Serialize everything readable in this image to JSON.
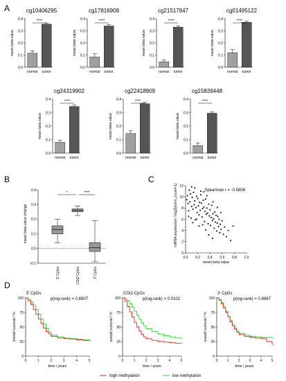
{
  "panels": {
    "A": "A",
    "B": "B",
    "C": "C",
    "D": "D"
  },
  "colors": {
    "normal_bar": "#a0a0a0",
    "tumor_bar": "#555555",
    "box_fill": "#999999",
    "scatter": "#222222",
    "high": "#e8232b",
    "low": "#22dd22"
  },
  "chart_data": [
    {
      "type": "bar",
      "title": "cg10406295",
      "categories": [
        "normal",
        "tumor"
      ],
      "values": [
        0.115,
        0.355
      ],
      "errors": [
        0.02,
        0.01
      ],
      "ylabel": "mean beta value",
      "yticks": [
        "0.0",
        "0.1",
        "0.2",
        "0.3",
        "0.4"
      ],
      "ylim": [
        0,
        0.4
      ],
      "significance": "****"
    },
    {
      "type": "bar",
      "title": "cg17816908",
      "categories": [
        "normal",
        "tumor"
      ],
      "values": [
        0.085,
        0.34
      ],
      "errors": [
        0.025,
        0.01
      ],
      "ylabel": "mean beta value",
      "yticks": [
        "0.0",
        "0.1",
        "0.2",
        "0.3",
        "0.4"
      ],
      "ylim": [
        0,
        0.4
      ],
      "significance": "****"
    },
    {
      "type": "bar",
      "title": "cg21517947",
      "categories": [
        "normal",
        "tumor"
      ],
      "values": [
        0.045,
        0.33
      ],
      "errors": [
        0.015,
        0.01
      ],
      "ylabel": "mean beta value",
      "yticks": [
        "0.0",
        "0.1",
        "0.2",
        "0.3",
        "0.4"
      ],
      "ylim": [
        0,
        0.4
      ],
      "significance": "****"
    },
    {
      "type": "bar",
      "title": "cg01495122",
      "categories": [
        "normal",
        "tumor"
      ],
      "values": [
        0.12,
        0.37
      ],
      "errors": [
        0.025,
        0.01
      ],
      "ylabel": "mean beta value",
      "yticks": [
        "0.0",
        "0.1",
        "0.2",
        "0.3",
        "0.4"
      ],
      "ylim": [
        0,
        0.4
      ],
      "significance": "****"
    },
    {
      "type": "bar",
      "title": "cg24319902",
      "categories": [
        "normal",
        "tumor"
      ],
      "values": [
        0.08,
        0.345
      ],
      "errors": [
        0.015,
        0.01
      ],
      "ylabel": "mean beta value",
      "yticks": [
        "0.0",
        "0.1",
        "0.2",
        "0.3",
        "0.4"
      ],
      "ylim": [
        0,
        0.4
      ],
      "significance": "****"
    },
    {
      "type": "bar",
      "title": "cg22418909",
      "categories": [
        "normal",
        "tumor"
      ],
      "values": [
        0.145,
        0.365
      ],
      "errors": [
        0.02,
        0.01
      ],
      "ylabel": "mean beta value",
      "yticks": [
        "0.0",
        "0.1",
        "0.2",
        "0.3",
        "0.4"
      ],
      "ylim": [
        0,
        0.4
      ],
      "significance": "****"
    },
    {
      "type": "bar",
      "title": "cg15839448",
      "categories": [
        "normal",
        "tumor"
      ],
      "values": [
        0.055,
        0.295
      ],
      "errors": [
        0.02,
        0.01
      ],
      "ylabel": "mean beta value",
      "yticks": [
        "0.0",
        "0.1",
        "0.2",
        "0.3",
        "0.4"
      ],
      "ylim": [
        0,
        0.4
      ],
      "significance": "****"
    },
    {
      "type": "box",
      "categories": [
        "5' CpGs",
        "CGI2 CpGs",
        "3' CpGs"
      ],
      "boxes": [
        {
          "min": 0.04,
          "q1": 0.1,
          "median": 0.13,
          "q3": 0.155,
          "max": 0.2
        },
        {
          "min": 0.225,
          "q1": 0.25,
          "median": 0.26,
          "q3": 0.27,
          "max": 0.29
        },
        {
          "min": -0.09,
          "q1": -0.02,
          "median": 0.005,
          "q3": 0.04,
          "max": 0.19
        }
      ],
      "ylabel": "mean beta value change",
      "yticks": [
        "-0.1",
        "0.0",
        "0.1",
        "0.2",
        "0.3",
        "0.4"
      ],
      "ylim": [
        -0.1,
        0.4
      ],
      "significance": [
        {
          "from": 0,
          "to": 1,
          "label": "*"
        },
        {
          "from": 1,
          "to": 2,
          "label": "****"
        }
      ]
    },
    {
      "type": "scatter",
      "xlabel": "mean beta value",
      "ylabel": "mRNA expression / log2(norm_count+1)",
      "annotation": "Spearman r = -0.5808",
      "xticks": [
        "0.0",
        "0.2",
        "0.4",
        "0.6",
        "0.8",
        "1.0"
      ],
      "yticks": [
        "0",
        "2",
        "4",
        "6",
        "8",
        "10",
        "12"
      ],
      "xlim": [
        0,
        1
      ],
      "ylim": [
        0,
        12
      ],
      "points": [
        [
          0.02,
          9.5
        ],
        [
          0.03,
          10.2
        ],
        [
          0.04,
          8.8
        ],
        [
          0.05,
          7.5
        ],
        [
          0.06,
          11.2
        ],
        [
          0.07,
          9.1
        ],
        [
          0.08,
          10.5
        ],
        [
          0.09,
          6.2
        ],
        [
          0.1,
          8.3
        ],
        [
          0.11,
          9.9
        ],
        [
          0.12,
          7.8
        ],
        [
          0.13,
          10.8
        ],
        [
          0.14,
          8.6
        ],
        [
          0.15,
          9.3
        ],
        [
          0.16,
          5.9
        ],
        [
          0.17,
          8.1
        ],
        [
          0.18,
          10.1
        ],
        [
          0.19,
          7.2
        ],
        [
          0.2,
          9.7
        ],
        [
          0.21,
          8.4
        ],
        [
          0.22,
          6.8
        ],
        [
          0.23,
          9.0
        ],
        [
          0.24,
          7.6
        ],
        [
          0.25,
          10.4
        ],
        [
          0.26,
          8.9
        ],
        [
          0.27,
          6.4
        ],
        [
          0.28,
          7.9
        ],
        [
          0.29,
          9.4
        ],
        [
          0.3,
          8.2
        ],
        [
          0.31,
          5.6
        ],
        [
          0.32,
          7.4
        ],
        [
          0.33,
          9.6
        ],
        [
          0.34,
          6.9
        ],
        [
          0.35,
          8.0
        ],
        [
          0.36,
          7.1
        ],
        [
          0.37,
          5.2
        ],
        [
          0.38,
          8.7
        ],
        [
          0.39,
          6.6
        ],
        [
          0.4,
          7.7
        ],
        [
          0.41,
          4.9
        ],
        [
          0.42,
          6.3
        ],
        [
          0.43,
          8.5
        ],
        [
          0.44,
          5.8
        ],
        [
          0.45,
          7.0
        ],
        [
          0.46,
          6.1
        ],
        [
          0.47,
          4.4
        ],
        [
          0.48,
          7.3
        ],
        [
          0.49,
          5.5
        ],
        [
          0.5,
          6.7
        ],
        [
          0.51,
          3.9
        ],
        [
          0.52,
          5.3
        ],
        [
          0.53,
          6.5
        ],
        [
          0.54,
          4.7
        ],
        [
          0.55,
          6.0
        ],
        [
          0.56,
          3.6
        ],
        [
          0.57,
          5.1
        ],
        [
          0.58,
          4.2
        ],
        [
          0.6,
          5.7
        ],
        [
          0.62,
          3.3
        ],
        [
          0.64,
          4.6
        ],
        [
          0.67,
          2.9
        ],
        [
          0.7,
          4.0
        ],
        [
          0.74,
          2.2
        ],
        [
          0.78,
          4.8
        ],
        [
          0.15,
          11.6
        ],
        [
          0.25,
          11.0
        ],
        [
          0.35,
          10.2
        ],
        [
          0.45,
          9.1
        ],
        [
          0.05,
          6.5
        ],
        [
          0.12,
          5.4
        ],
        [
          0.22,
          4.8
        ],
        [
          0.33,
          4.1
        ],
        [
          0.38,
          3.2
        ],
        [
          0.44,
          2.6
        ],
        [
          0.52,
          8.1
        ],
        [
          0.58,
          7.2
        ],
        [
          0.18,
          6.0
        ],
        [
          0.28,
          5.0
        ],
        [
          0.1,
          11.8
        ],
        [
          0.3,
          10.9
        ]
      ]
    },
    {
      "type": "line",
      "title": "5' CpGs",
      "annotation": "p(log-rank) = 0.6907",
      "xlabel": "time / years",
      "ylabel": "overall survival / %",
      "xticks": [
        "0",
        "1",
        "2",
        "3",
        "4",
        "5"
      ],
      "yticks": [
        "0",
        "25",
        "50",
        "75",
        "100"
      ],
      "xlim": [
        0,
        5
      ],
      "ylim": [
        0,
        100
      ],
      "series": [
        {
          "name": "high methylation",
          "x": [
            0,
            0.2,
            0.4,
            0.6,
            0.8,
            1.0,
            1.2,
            1.4,
            1.6,
            1.8,
            2.0,
            2.5,
            3.0,
            3.5,
            4.0,
            4.5,
            5.0
          ],
          "y": [
            100,
            95,
            89,
            80,
            72,
            64,
            56,
            48,
            42,
            38,
            34,
            31,
            30,
            29,
            28,
            27,
            27
          ]
        },
        {
          "name": "low methylation",
          "x": [
            0,
            0.2,
            0.4,
            0.6,
            0.8,
            1.0,
            1.2,
            1.4,
            1.6,
            1.8,
            2.0,
            2.5,
            3.0,
            3.5,
            4.0,
            4.5,
            5.0
          ],
          "y": [
            100,
            97,
            93,
            87,
            80,
            72,
            63,
            55,
            47,
            41,
            36,
            33,
            31,
            30,
            29,
            28,
            26
          ]
        }
      ]
    },
    {
      "type": "line",
      "title": "CGI2 CpGs",
      "annotation": "p(log-rank) = 0.0102",
      "xlabel": "time / years",
      "ylabel": "overall survival / %",
      "xticks": [
        "0",
        "1",
        "2",
        "3",
        "4",
        "5"
      ],
      "yticks": [
        "0",
        "25",
        "50",
        "75",
        "100"
      ],
      "xlim": [
        0,
        5
      ],
      "ylim": [
        0,
        100
      ],
      "series": [
        {
          "name": "high methylation",
          "x": [
            0,
            0.2,
            0.4,
            0.6,
            0.8,
            1.0,
            1.2,
            1.4,
            1.6,
            1.8,
            2.0,
            2.5,
            3.0,
            3.5,
            4.0,
            4.5,
            5.0
          ],
          "y": [
            100,
            94,
            85,
            76,
            67,
            58,
            50,
            43,
            37,
            33,
            30,
            27,
            25,
            24,
            23,
            22,
            22
          ]
        },
        {
          "name": "low methylation",
          "x": [
            0,
            0.2,
            0.4,
            0.6,
            0.8,
            1.0,
            1.2,
            1.4,
            1.6,
            1.8,
            2.0,
            2.5,
            3.0,
            3.5,
            4.0,
            4.5,
            5.0
          ],
          "y": [
            100,
            98,
            95,
            90,
            84,
            77,
            70,
            63,
            57,
            52,
            47,
            42,
            38,
            35,
            33,
            31,
            30
          ]
        }
      ]
    },
    {
      "type": "line",
      "title": "3' CpGs",
      "annotation": "p(log-rank) = 0.8867",
      "xlabel": "time / years",
      "ylabel": "overall survival / %",
      "xticks": [
        "0",
        "1",
        "2",
        "3",
        "4",
        "5"
      ],
      "yticks": [
        "0",
        "25",
        "50",
        "75",
        "100"
      ],
      "xlim": [
        0,
        5
      ],
      "ylim": [
        0,
        100
      ],
      "series": [
        {
          "name": "high methylation",
          "x": [
            0,
            0.2,
            0.4,
            0.6,
            0.8,
            1.0,
            1.2,
            1.4,
            1.6,
            1.8,
            2.0,
            2.5,
            3.0,
            3.5,
            4.0,
            4.5,
            5.0
          ],
          "y": [
            100,
            96,
            90,
            83,
            75,
            67,
            59,
            52,
            46,
            41,
            37,
            34,
            32,
            31,
            30,
            25,
            20
          ]
        },
        {
          "name": "low methylation",
          "x": [
            0,
            0.2,
            0.4,
            0.6,
            0.8,
            1.0,
            1.2,
            1.4,
            1.6,
            1.8,
            2.0,
            2.5,
            3.0,
            3.5,
            4.0,
            4.5,
            5.0
          ],
          "y": [
            100,
            97,
            92,
            85,
            77,
            69,
            61,
            54,
            48,
            43,
            39,
            36,
            34,
            33,
            32,
            32,
            31
          ]
        }
      ]
    }
  ],
  "legend": {
    "items": [
      {
        "label": "high methylation",
        "color": "#e8232b"
      },
      {
        "label": "low methylation",
        "color": "#22dd22"
      }
    ]
  }
}
